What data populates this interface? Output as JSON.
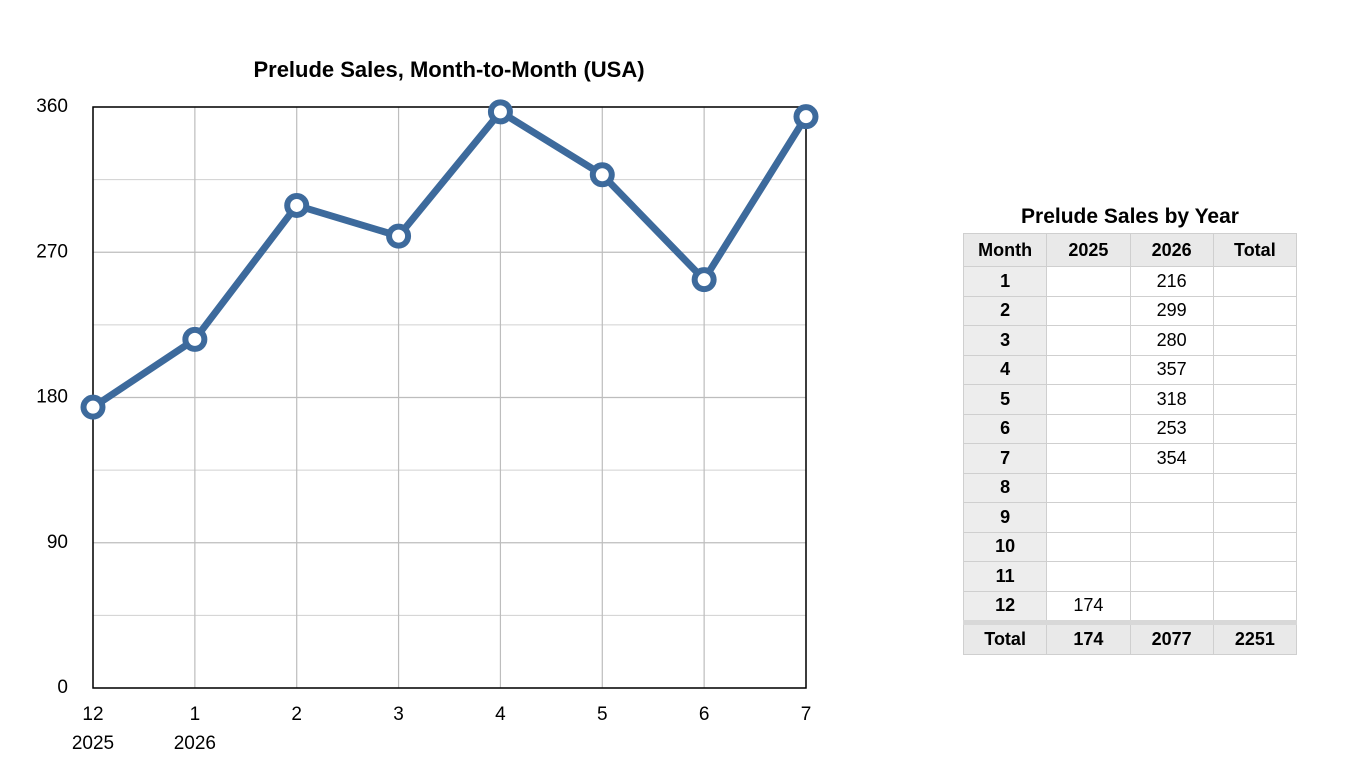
{
  "chart_data": {
    "type": "line",
    "title": "Prelude Sales, Month-to-Month (USA)",
    "categories": [
      "12",
      "1",
      "2",
      "3",
      "4",
      "5",
      "6",
      "7"
    ],
    "x_years": [
      "2025",
      "2026",
      null,
      null,
      null,
      null,
      null,
      null
    ],
    "values": [
      174,
      216,
      299,
      280,
      357,
      318,
      253,
      354
    ],
    "color": "#3d6a9c",
    "ylim": [
      0,
      360
    ],
    "yticks": [
      0,
      90,
      180,
      270,
      360
    ],
    "y_minor_ticks": [
      45,
      135,
      225,
      315
    ],
    "grid": true
  },
  "table": {
    "title": "Prelude Sales by Year",
    "header": [
      "Month",
      "2025",
      "2026",
      "Total"
    ],
    "rows": [
      [
        1,
        null,
        216,
        null
      ],
      [
        2,
        null,
        299,
        null
      ],
      [
        3,
        null,
        280,
        null
      ],
      [
        4,
        null,
        357,
        null
      ],
      [
        5,
        null,
        318,
        null
      ],
      [
        6,
        null,
        253,
        null
      ],
      [
        7,
        null,
        354,
        null
      ],
      [
        8,
        null,
        null,
        null
      ],
      [
        9,
        null,
        null,
        null
      ],
      [
        10,
        null,
        null,
        null
      ],
      [
        11,
        null,
        null,
        null
      ],
      [
        12,
        174,
        null,
        null
      ]
    ],
    "total": [
      "Total",
      174,
      2077,
      2251
    ]
  }
}
